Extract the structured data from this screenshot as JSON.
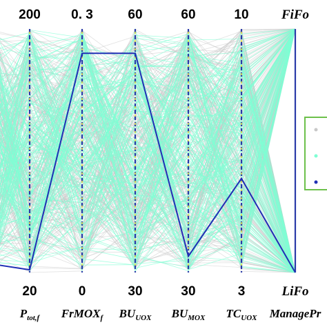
{
  "chart_data": {
    "type": "parallel-coordinates",
    "axes": [
      {
        "label": "P",
        "label_sub": "tot,f",
        "top": "200",
        "bottom": "20",
        "range": [
          20,
          200
        ]
      },
      {
        "label": "FrMOX",
        "label_sub": "f",
        "top": "0. 3",
        "bottom": "0",
        "range": [
          0,
          0.3
        ]
      },
      {
        "label": "BU",
        "label_sub": "UOX",
        "top": "60",
        "bottom": "30",
        "range": [
          30,
          60
        ]
      },
      {
        "label": "BU",
        "label_sub": "MOX",
        "top": "60",
        "bottom": "30",
        "range": [
          30,
          60
        ]
      },
      {
        "label": "TC",
        "label_sub": "UOX",
        "top": "10",
        "bottom": "3",
        "range": [
          3,
          10
        ]
      },
      {
        "label": "ManagePr",
        "label_sub": "",
        "top": "FiFo",
        "bottom": "LiFo",
        "range": [
          "LiFo",
          "FiFo"
        ]
      }
    ],
    "series": [
      {
        "color": "#c8c8c8",
        "style": "many-lines",
        "description_values": "dense grey background set"
      },
      {
        "color": "#7fffd4",
        "style": "many-lines",
        "description_values": "dense aquamarine set"
      },
      {
        "color": "#1f2fb5",
        "style": "single-line",
        "values": [
          22,
          0.27,
          57,
          32,
          5.7,
          "LiFo"
        ]
      }
    ],
    "legend": {
      "placement": "right",
      "border_color": "#6cc04a",
      "markers": [
        "#c8c8c8",
        "#7fffd4",
        "#1f2fb5"
      ]
    }
  }
}
